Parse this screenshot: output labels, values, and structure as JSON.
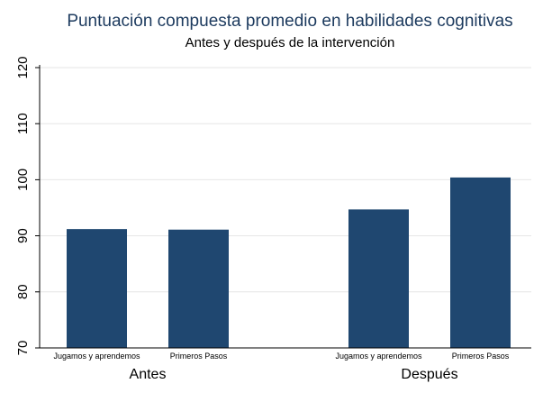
{
  "chart_data": {
    "type": "bar",
    "title": "Puntuación compuesta promedio en habilidades cognitivas",
    "subtitle": "Antes y después de la intervención",
    "ylim": [
      70,
      120
    ],
    "yticks": [
      "70",
      "80",
      "90",
      "100",
      "110",
      "120"
    ],
    "grid": true,
    "bar_color": "#1f4770",
    "groups": [
      {
        "label": "Antes",
        "bars": [
          {
            "category": "Jugamos y aprendemos",
            "value": 91.2
          },
          {
            "category": "Primeros Pasos",
            "value": 91.1
          }
        ]
      },
      {
        "label": "Después",
        "bars": [
          {
            "category": "Jugamos y aprendemos",
            "value": 94.7
          },
          {
            "category": "Primeros Pasos",
            "value": 100.4
          }
        ]
      }
    ]
  }
}
